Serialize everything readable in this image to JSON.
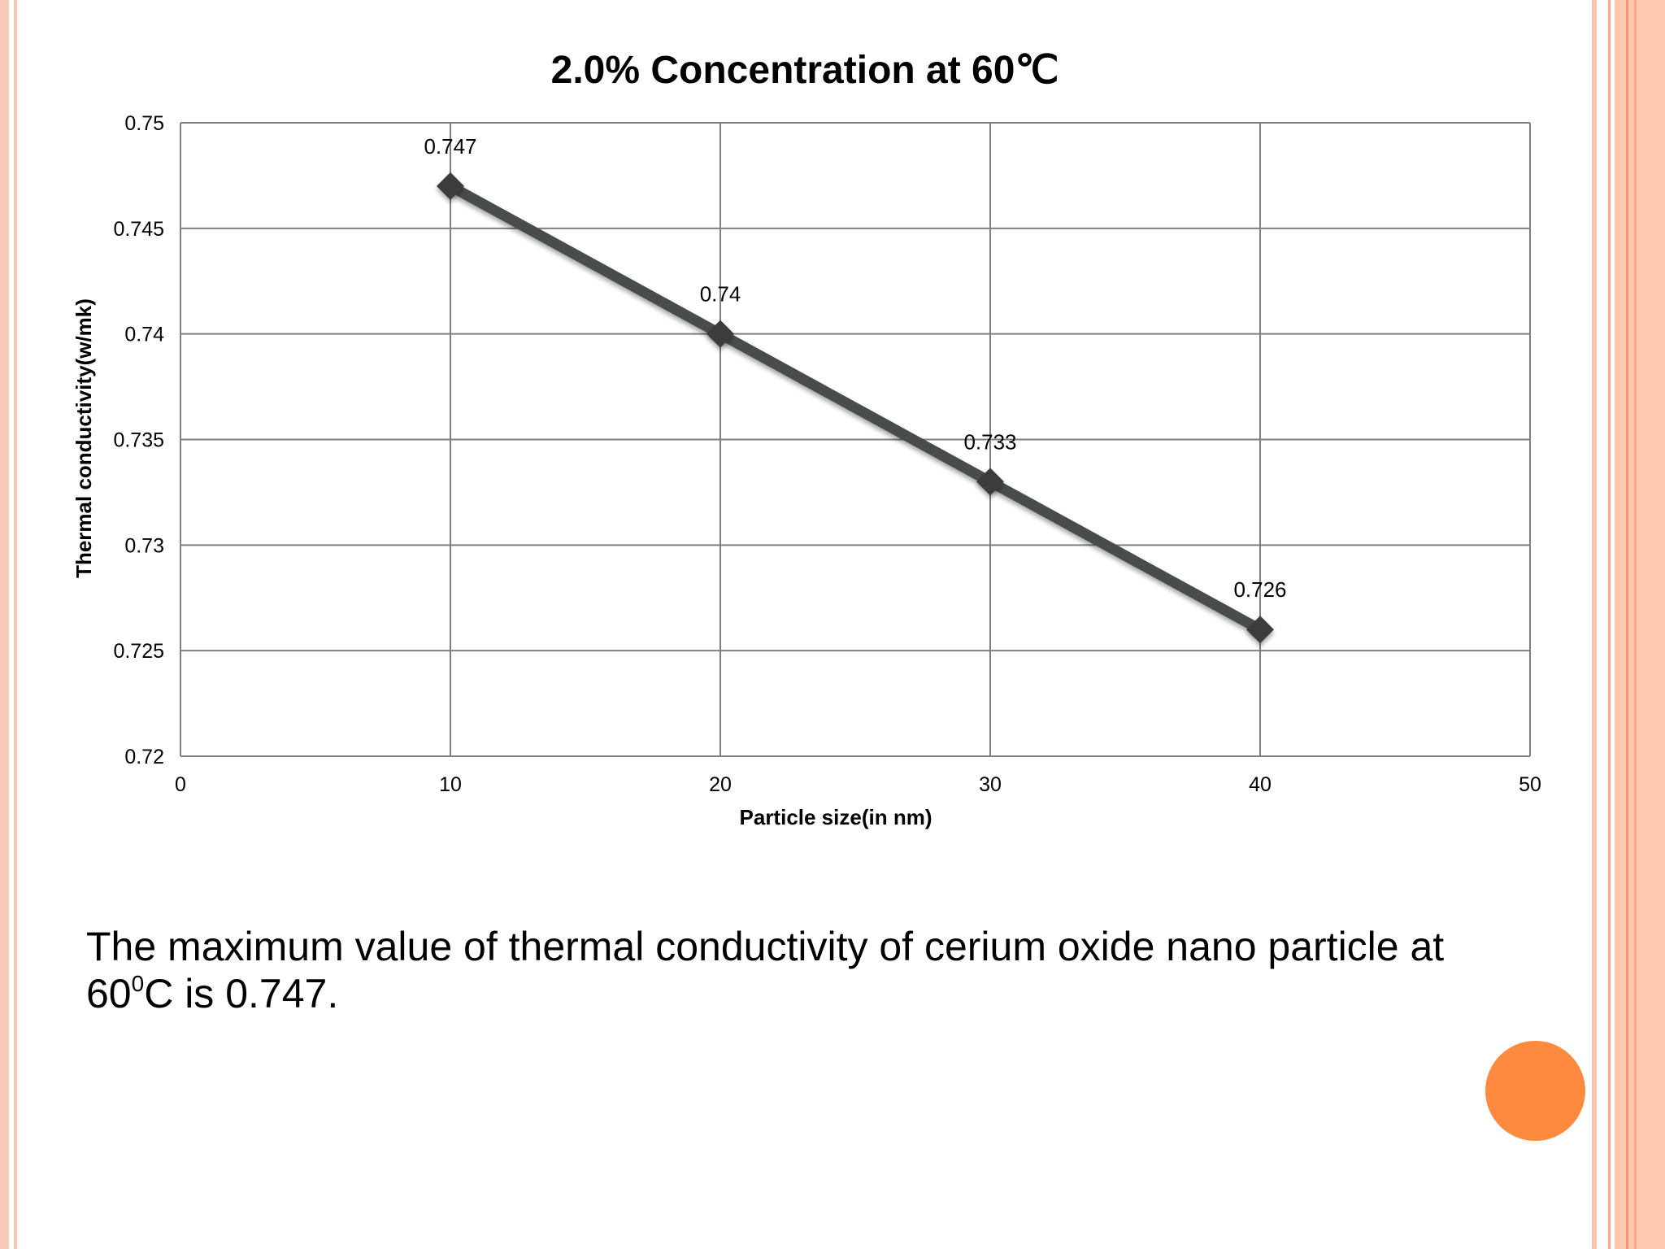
{
  "colors": {
    "border_light": "#f9c9b7",
    "border_accent": "#f4967a",
    "orange_dot": "#fd8a3f",
    "series_line": "#4a4d4a",
    "grid": "#7f7f7f"
  },
  "chart_data": {
    "type": "line",
    "title": "2.0% Concentration at 60℃",
    "xlabel": "Particle size(in nm)",
    "ylabel": "Thermal conductivity(w/mk)",
    "xlim": [
      0,
      50
    ],
    "ylim": [
      0.72,
      0.75
    ],
    "x_ticks": [
      "0",
      "10",
      "20",
      "30",
      "40",
      "50"
    ],
    "y_ticks": [
      "0.72",
      "0.725",
      "0.73",
      "0.735",
      "0.74",
      "0.745",
      "0.75"
    ],
    "grid": true,
    "legend": "none",
    "series": [
      {
        "marker": "diamond",
        "x": [
          10,
          20,
          30,
          40
        ],
        "y": [
          0.747,
          0.74,
          0.733,
          0.726
        ],
        "labels": [
          "0.747",
          "0.74",
          "0.733",
          "0.726"
        ]
      }
    ]
  },
  "caption": {
    "line1": "The maximum value of thermal conductivity of cerium oxide nano particle at",
    "line2_prefix": "60",
    "line2_sup": "0",
    "line2_suffix": "C is 0.747."
  }
}
